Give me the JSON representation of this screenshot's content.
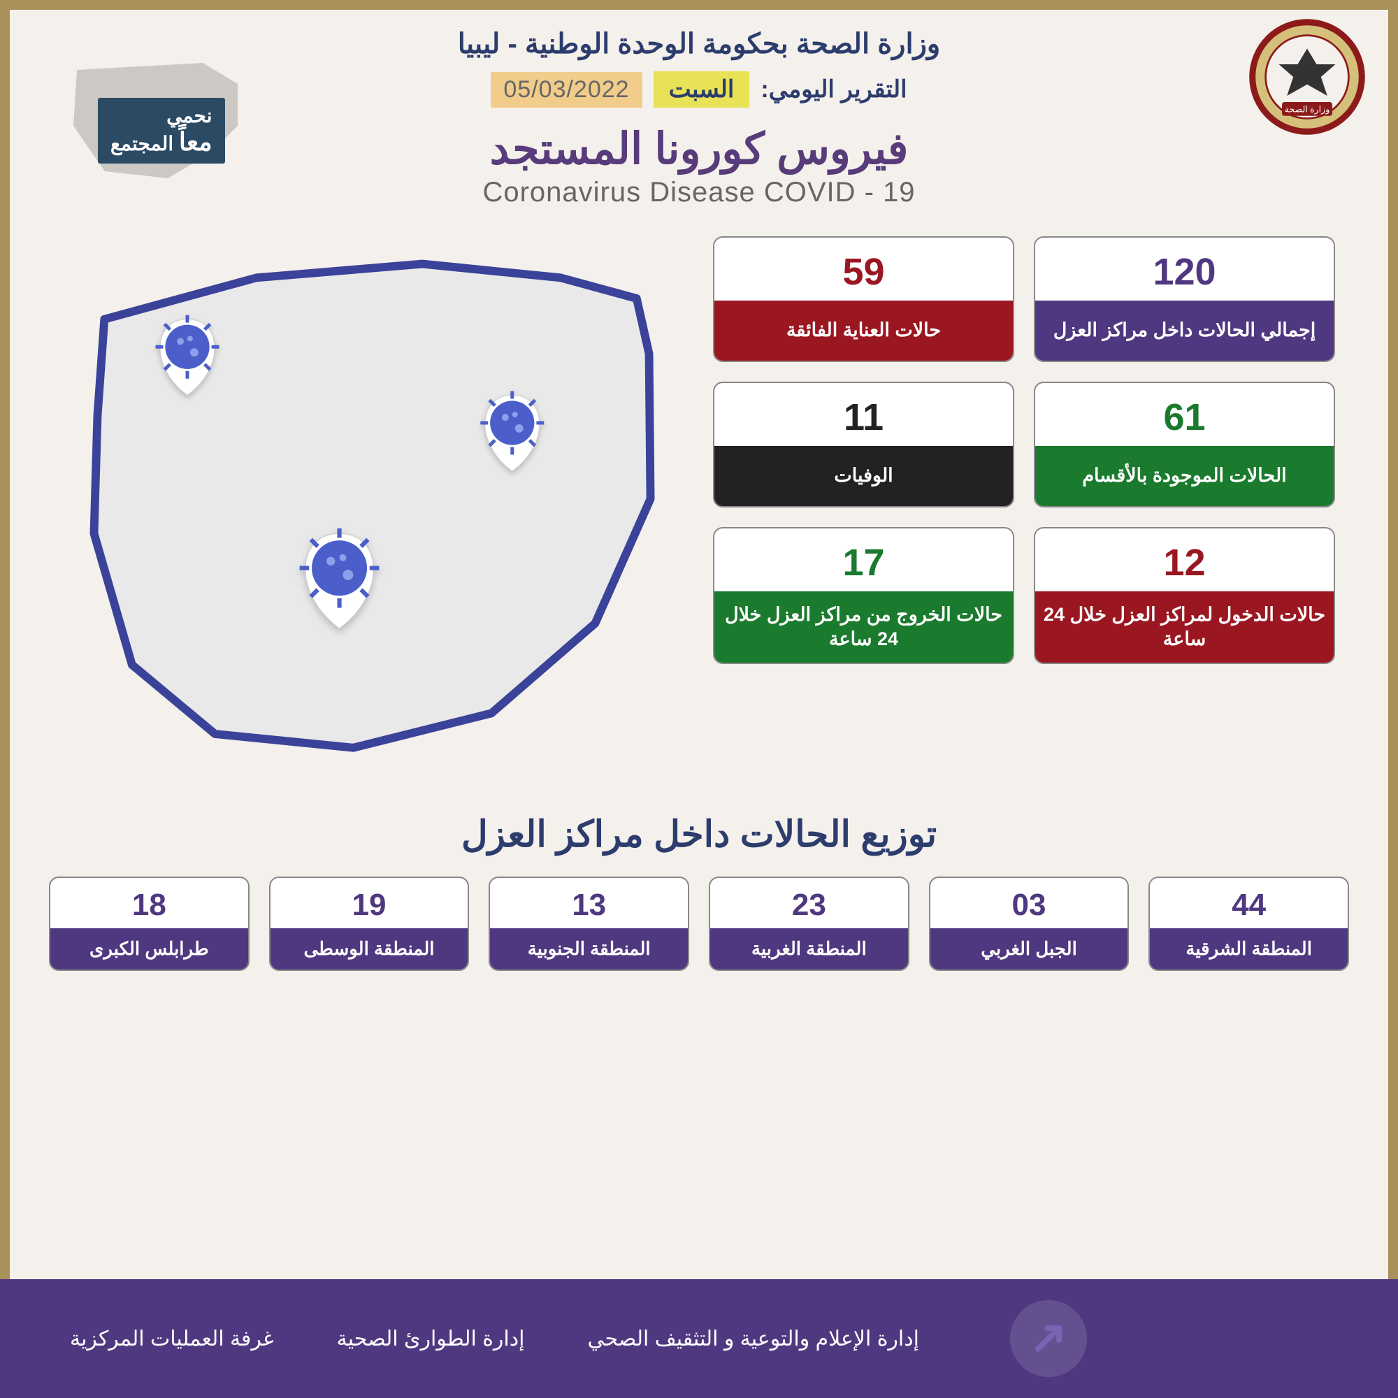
{
  "colors": {
    "frame": "#a8915a",
    "background": "#f4f0eb",
    "heading_blue": "#2c3c6d",
    "heading_purple": "#573b7a",
    "subtitle_gray": "#666666",
    "day_badge_bg": "#e7e256",
    "date_badge_bg": "#f2cc8a",
    "footer_bg": "#503880",
    "region_label_bg": "#503880",
    "map_outline": "#3b4299",
    "map_fill": "#e9e9e9",
    "virus_pin": "#4c5ec9"
  },
  "header": {
    "org_title": "وزارة الصحة بحكومة الوحدة الوطنية - ليبيا",
    "report_label": "التقرير اليومي:",
    "day": "السبت",
    "date": "05/03/2022",
    "title_ar": "فيروس كورونا المستجد",
    "title_en": "Coronavirus Disease COVID - 19",
    "campaign_line1": "نحمي",
    "campaign_line2": "معاً",
    "campaign_line3": "المجتمع"
  },
  "stats": [
    {
      "value": "120",
      "label": "إجمالي الحالات داخل مراكز العزل",
      "value_color": "#503880",
      "label_bg": "#503880"
    },
    {
      "value": "59",
      "label": "حالات العناية الفائقة",
      "value_color": "#9a1722",
      "label_bg": "#9a1722"
    },
    {
      "value": "61",
      "label": "الحالات الموجودة بالأقسام",
      "value_color": "#1a7a2d",
      "label_bg": "#1a7a2d"
    },
    {
      "value": "11",
      "label": "الوفيات",
      "value_color": "#222222",
      "label_bg": "#222222"
    },
    {
      "value": "12",
      "label": "حالات الدخول لمراكز العزل خلال 24 ساعة",
      "value_color": "#9a1722",
      "label_bg": "#9a1722"
    },
    {
      "value": "17",
      "label": "حالات الخروج من مراكز العزل خلال 24 ساعة",
      "value_color": "#1a7a2d",
      "label_bg": "#1a7a2d"
    }
  ],
  "distribution": {
    "title": "توزيع الحالات داخل مراكز العزل",
    "value_color": "#503880",
    "regions": [
      {
        "value": "18",
        "label": "طرابلس الكبرى"
      },
      {
        "value": "19",
        "label": "المنطقة الوسطى"
      },
      {
        "value": "13",
        "label": "المنطقة الجنوبية"
      },
      {
        "value": "23",
        "label": "المنطقة الغربية"
      },
      {
        "value": "03",
        "label": "الجبل الغربي"
      },
      {
        "value": "44",
        "label": "المنطقة الشرقية"
      }
    ]
  },
  "footer": {
    "dept1": "إدارة الإعلام والتوعية و التثقيف الصحي",
    "dept2": "إدارة الطوارئ الصحية",
    "dept3": "غرفة العمليات المركزية"
  }
}
